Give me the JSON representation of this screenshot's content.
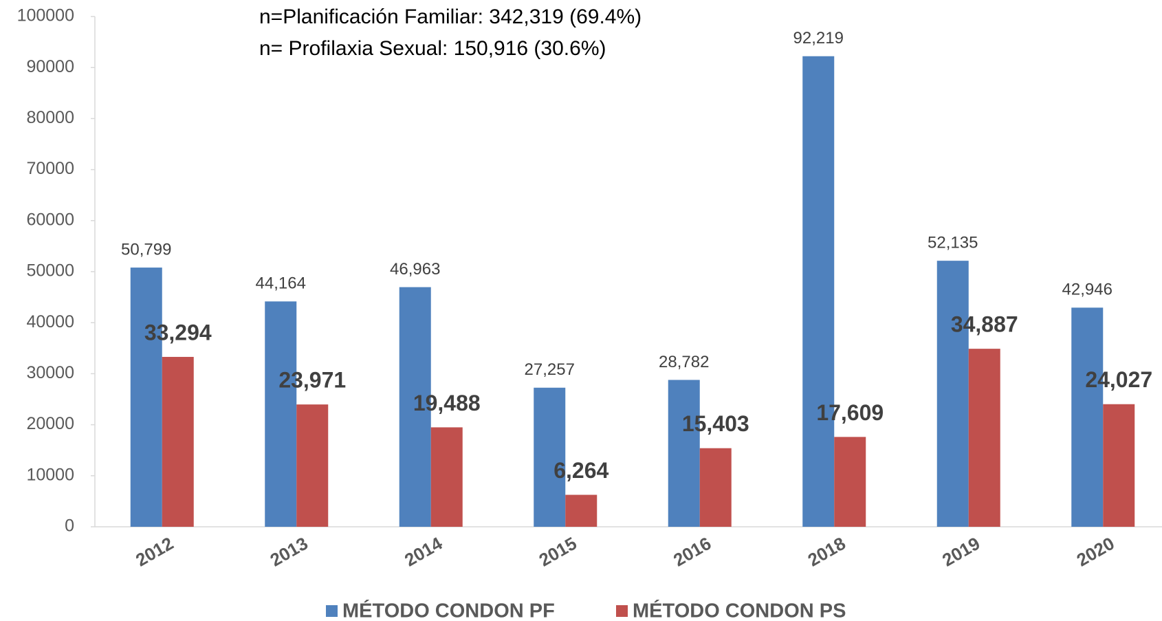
{
  "chart_data": {
    "type": "bar",
    "annotations": [
      "n=Planificación Familiar: 342,319 (69.4%)",
      "n= Profilaxia Sexual: 150,916 (30.6%)"
    ],
    "categories": [
      "2012",
      "2013",
      "2014",
      "2015",
      "2016",
      "2018",
      "2019",
      "2020"
    ],
    "series": [
      {
        "name": "MÉTODO CONDON PF",
        "color": "#4f81bd",
        "values": [
          50799,
          44164,
          46963,
          27257,
          28782,
          92219,
          52135,
          42946
        ],
        "value_labels": [
          "50,799",
          "44,164",
          "46,963",
          "27,257",
          "28,782",
          "92,219",
          "52,135",
          "42,946"
        ]
      },
      {
        "name": "MÉTODO CONDON PS",
        "color": "#c0504d",
        "values": [
          33294,
          23971,
          19488,
          6264,
          15403,
          17609,
          34887,
          24027
        ],
        "value_labels": [
          "33,294",
          "23,971",
          "19,488",
          "6,264",
          "15,403",
          "17,609",
          "34,887",
          "24,027"
        ]
      }
    ],
    "ylim": [
      0,
      100000
    ],
    "yticks": [
      0,
      10000,
      20000,
      30000,
      40000,
      50000,
      60000,
      70000,
      80000,
      90000,
      100000
    ],
    "legend": "bottom"
  }
}
